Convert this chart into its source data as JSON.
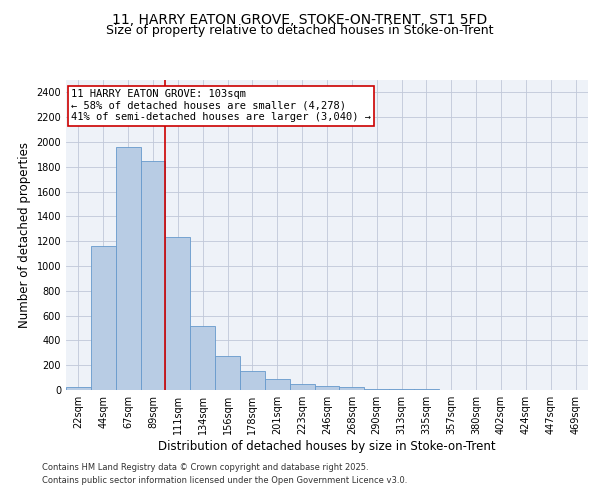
{
  "title_line1": "11, HARRY EATON GROVE, STOKE-ON-TRENT, ST1 5FD",
  "title_line2": "Size of property relative to detached houses in Stoke-on-Trent",
  "xlabel": "Distribution of detached houses by size in Stoke-on-Trent",
  "ylabel": "Number of detached properties",
  "categories": [
    "22sqm",
    "44sqm",
    "67sqm",
    "89sqm",
    "111sqm",
    "134sqm",
    "156sqm",
    "178sqm",
    "201sqm",
    "223sqm",
    "246sqm",
    "268sqm",
    "290sqm",
    "313sqm",
    "335sqm",
    "357sqm",
    "380sqm",
    "402sqm",
    "424sqm",
    "447sqm",
    "469sqm"
  ],
  "values": [
    25,
    1160,
    1960,
    1850,
    1230,
    515,
    275,
    155,
    85,
    45,
    30,
    27,
    12,
    8,
    5,
    4,
    3,
    3,
    2,
    2,
    2
  ],
  "bar_color": "#b8cce4",
  "bar_edge_color": "#6699cc",
  "vline_x": 3.5,
  "vline_color": "#cc0000",
  "annotation_text": "11 HARRY EATON GROVE: 103sqm\n← 58% of detached houses are smaller (4,278)\n41% of semi-detached houses are larger (3,040) →",
  "annotation_box_color": "#cc0000",
  "ylim": [
    0,
    2500
  ],
  "yticks": [
    0,
    200,
    400,
    600,
    800,
    1000,
    1200,
    1400,
    1600,
    1800,
    2000,
    2200,
    2400
  ],
  "grid_color": "#c0c8d8",
  "bg_color": "#eef2f8",
  "footer_line1": "Contains HM Land Registry data © Crown copyright and database right 2025.",
  "footer_line2": "Contains public sector information licensed under the Open Government Licence v3.0.",
  "title_fontsize": 10,
  "subtitle_fontsize": 9,
  "axis_label_fontsize": 8.5,
  "tick_fontsize": 7,
  "annotation_fontsize": 7.5,
  "footer_fontsize": 6
}
